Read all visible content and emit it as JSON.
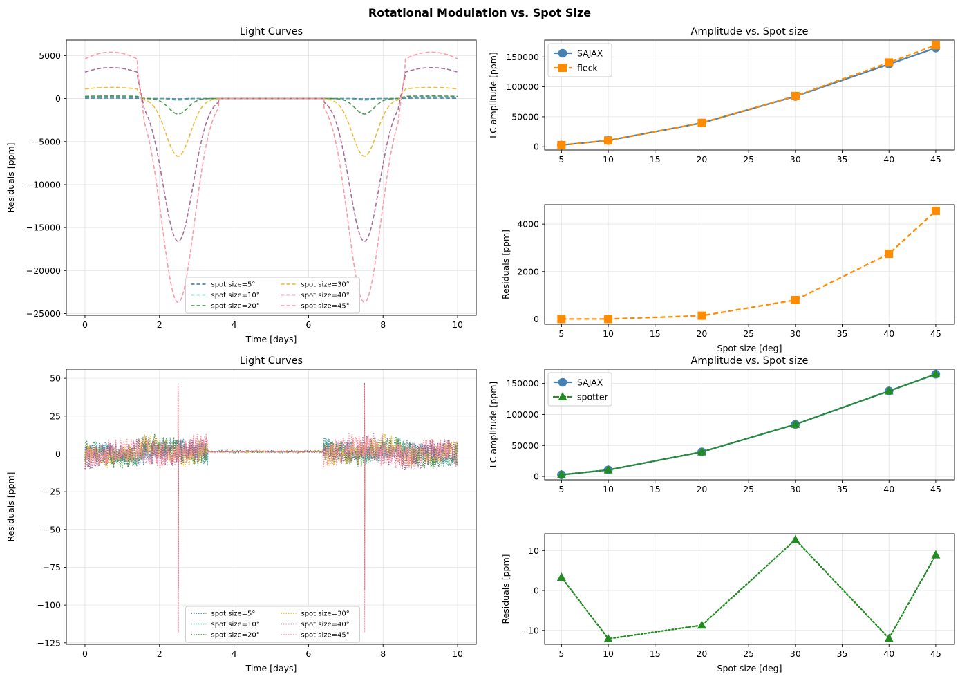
{
  "suptitle": "Rotational Modulation vs. Spot Size",
  "colors": {
    "blue": "#4682b4",
    "orange": "#ff8c00",
    "green": "#228b22",
    "lc_series": [
      "#3a6ea5",
      "#4aa8a0",
      "#3d8b3d",
      "#e8b52a",
      "#a05c8c",
      "#ff8fa0"
    ]
  },
  "chart_data": [
    {
      "id": "lc_top",
      "type": "line",
      "title": "Light Curves",
      "xlabel": "Time [days]",
      "ylabel": "Residuals [ppm]",
      "xlim": [
        -0.5,
        10.5
      ],
      "ylim": [
        -25200,
        6800
      ],
      "xticks": [
        0,
        2,
        4,
        6,
        8,
        10
      ],
      "yticks": [
        5000,
        0,
        -5000,
        -10000,
        -15000,
        -20000,
        -25000
      ],
      "ytick_labels": [
        "5000",
        "0",
        "−5000",
        "−10000",
        "−15000",
        "−20000",
        "−25000"
      ],
      "grid": true,
      "line_style": "dashed",
      "legend_position": "lower center, 2 columns",
      "series": [
        {
          "name": "spot size=5°",
          "spot_deg": 5,
          "peak_ppm": 45,
          "dip_ppm": 40
        },
        {
          "name": "spot size=10°",
          "spot_deg": 10,
          "peak_ppm": 180,
          "dip_ppm": 170
        },
        {
          "name": "spot size=20°",
          "spot_deg": 20,
          "peak_ppm": 300,
          "dip_ppm": 1800
        },
        {
          "name": "spot size=30°",
          "spot_deg": 30,
          "peak_ppm": 1300,
          "dip_ppm": 6700
        },
        {
          "name": "spot size=40°",
          "spot_deg": 40,
          "peak_ppm": 3600,
          "dip_ppm": 16600
        },
        {
          "name": "spot size=45°",
          "spot_deg": 45,
          "peak_ppm": 5400,
          "dip_ppm": 23700
        }
      ]
    },
    {
      "id": "amp_top",
      "type": "line",
      "title": "Amplitude vs. Spot size",
      "xlabel": "",
      "ylabel": "LC amplitude [ppm]",
      "xlim": [
        3.2,
        47.0
      ],
      "ylim": [
        -5500,
        178000
      ],
      "xticks": [
        5,
        10,
        15,
        20,
        25,
        30,
        35,
        40,
        45
      ],
      "yticks": [
        0,
        50000,
        100000,
        150000
      ],
      "grid": true,
      "legend_position": "top-left",
      "series": [
        {
          "name": "SAJAX",
          "x": [
            5,
            10,
            20,
            30,
            40,
            45
          ],
          "values": [
            2700,
            10500,
            39600,
            84000,
            137800,
            165000
          ]
        },
        {
          "name": "fleck",
          "x": [
            5,
            10,
            20,
            30,
            40,
            45
          ],
          "values": [
            2700,
            10500,
            39800,
            84700,
            140600,
            169500
          ]
        }
      ]
    },
    {
      "id": "res_top",
      "type": "line",
      "title": "",
      "xlabel": "Spot size [deg]",
      "ylabel": "Residuals [ppm]",
      "xlim": [
        3.2,
        47.0
      ],
      "ylim": [
        -220,
        4820
      ],
      "xticks": [
        5,
        10,
        15,
        20,
        25,
        30,
        35,
        40,
        45
      ],
      "yticks": [
        0,
        2000,
        4000
      ],
      "grid": true,
      "series": [
        {
          "name": "",
          "x": [
            5,
            10,
            20,
            30,
            40,
            45
          ],
          "values": [
            0,
            0,
            140,
            800,
            2750,
            4560
          ]
        }
      ]
    },
    {
      "id": "lc_bottom",
      "type": "line",
      "title": "Light Curves",
      "xlabel": "Time [days]",
      "ylabel": "Residuals [ppm]",
      "xlim": [
        -0.5,
        10.5
      ],
      "ylim": [
        -126,
        56
      ],
      "xticks": [
        0,
        2,
        4,
        6,
        8,
        10
      ],
      "yticks": [
        50,
        25,
        0,
        -25,
        -50,
        -75,
        -100,
        -125
      ],
      "ytick_labels": [
        "50",
        "25",
        "0",
        "−25",
        "−50",
        "−75",
        "−100",
        "−125"
      ],
      "grid": true,
      "line_style": "dotted",
      "legend_position": "lower center, 2 columns",
      "series": [
        {
          "name": "spot size=5°",
          "spot_deg": 5,
          "noise_ppm": 5,
          "spike_high": 20,
          "spike_low": -20
        },
        {
          "name": "spot size=10°",
          "spot_deg": 10,
          "noise_ppm": 6,
          "spike_high": 25,
          "spike_low": -30
        },
        {
          "name": "spot size=20°",
          "spot_deg": 20,
          "noise_ppm": 7,
          "spike_high": 30,
          "spike_low": -45
        },
        {
          "name": "spot size=30°",
          "spot_deg": 30,
          "noise_ppm": 7,
          "spike_high": 38,
          "spike_low": -60
        },
        {
          "name": "spot size=40°",
          "spot_deg": 40,
          "noise_ppm": 8,
          "spike_high": 47,
          "spike_low": -90
        },
        {
          "name": "spot size=45°",
          "spot_deg": 45,
          "noise_ppm": 8,
          "spike_high": 45,
          "spike_low": -118
        }
      ]
    },
    {
      "id": "amp_bottom",
      "type": "line",
      "title": "Amplitude vs. Spot size",
      "xlabel": "",
      "ylabel": "LC amplitude [ppm]",
      "xlim": [
        3.2,
        47.0
      ],
      "ylim": [
        -5500,
        173000
      ],
      "xticks": [
        5,
        10,
        15,
        20,
        25,
        30,
        35,
        40,
        45
      ],
      "yticks": [
        0,
        50000,
        100000,
        150000
      ],
      "grid": true,
      "legend_position": "top-left",
      "series": [
        {
          "name": "SAJAX",
          "x": [
            5,
            10,
            20,
            30,
            40,
            45
          ],
          "values": [
            2700,
            10500,
            39600,
            84000,
            137800,
            165000
          ]
        },
        {
          "name": "spotter",
          "x": [
            5,
            10,
            20,
            30,
            40,
            45
          ],
          "values": [
            2700,
            10500,
            39600,
            84000,
            137800,
            165000
          ]
        }
      ]
    },
    {
      "id": "res_bottom",
      "type": "line",
      "title": "",
      "xlabel": "Spot size [deg]",
      "ylabel": "Residuals [ppm]",
      "xlim": [
        3.2,
        47.0
      ],
      "ylim": [
        -13.5,
        14.2
      ],
      "xticks": [
        5,
        10,
        15,
        20,
        25,
        30,
        35,
        40,
        45
      ],
      "yticks": [
        10,
        0,
        -10
      ],
      "ytick_labels": [
        "10",
        "0",
        "−10"
      ],
      "grid": true,
      "series": [
        {
          "name": "",
          "x": [
            5,
            10,
            20,
            30,
            40,
            45
          ],
          "values": [
            3.3,
            -12.1,
            -8.7,
            12.7,
            -12.0,
            8.9
          ]
        }
      ]
    }
  ]
}
